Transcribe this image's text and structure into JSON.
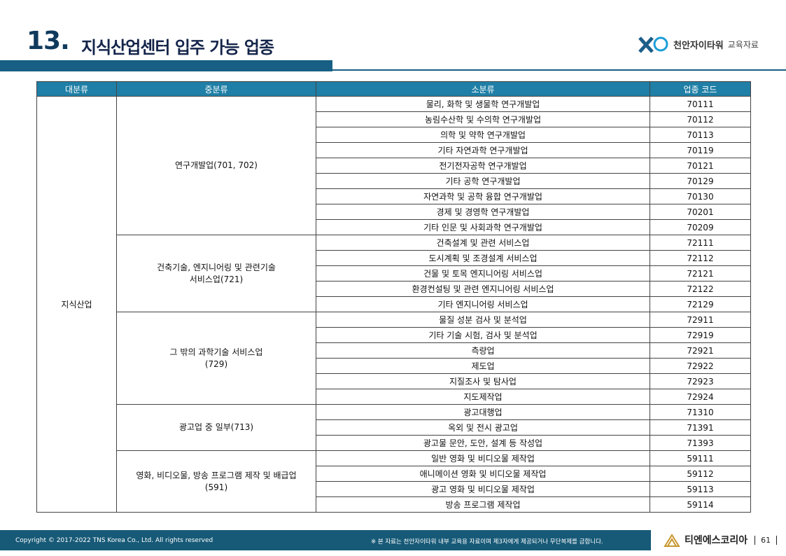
{
  "header": {
    "number": "13.",
    "title": "지식산업센터 입주 가능 업종",
    "logo_text": "천안자이타워",
    "logo_sub": "교육자료"
  },
  "table": {
    "headers": [
      "대분류",
      "중분류",
      "소분류",
      "업종 코드"
    ],
    "major": "지식산업",
    "groups": [
      {
        "label": [
          "연구개발업(701, 702)"
        ],
        "rows": [
          [
            "물리, 화학 및 생물학 연구개발업",
            "70111"
          ],
          [
            "농림수산학 및 수의학 연구개발업",
            "70112"
          ],
          [
            "의학 및 약학 연구개발업",
            "70113"
          ],
          [
            "기타 자연과학 연구개발업",
            "70119"
          ],
          [
            "전기전자공학 연구개발업",
            "70121"
          ],
          [
            "기타 공학 연구개발업",
            "70129"
          ],
          [
            "자연과학 및 공학 융합 연구개발업",
            "70130"
          ],
          [
            "경제 및 경영학 연구개발업",
            "70201"
          ],
          [
            "기타 인문 및 사회과학 연구개발업",
            "70209"
          ]
        ]
      },
      {
        "label": [
          "건축기술, 엔지니어링 및 관련기술",
          "서비스업(721)"
        ],
        "rows": [
          [
            "건축설계 및 관련 서비스업",
            "72111"
          ],
          [
            "도시계획 및 조경설계 서비스업",
            "72112"
          ],
          [
            "건물 및 토목 엔지니어링 서비스업",
            "72121"
          ],
          [
            "환경컨설팅 및 관련 엔지니어링 서비스업",
            "72122"
          ],
          [
            "기타 엔지니어링 서비스업",
            "72129"
          ]
        ]
      },
      {
        "label": [
          "그 밖의 과학기술 서비스업",
          "(729)"
        ],
        "rows": [
          [
            "물질 성분 검사 및 분석업",
            "72911"
          ],
          [
            "기타 기술 시험, 검사 및 분석업",
            "72919"
          ],
          [
            "측량업",
            "72921"
          ],
          [
            "제도업",
            "72922"
          ],
          [
            "지질조사 및 탐사업",
            "72923"
          ],
          [
            "지도제작업",
            "72924"
          ]
        ]
      },
      {
        "label": [
          "광고업 중 일부(713)"
        ],
        "rows": [
          [
            "광고대행업",
            "71310"
          ],
          [
            "옥외 및 전시 광고업",
            "71391"
          ],
          [
            "광고물 문안, 도안, 설계 등 작성업",
            "71393"
          ]
        ]
      },
      {
        "label": [
          "영화, 비디오물, 방송 프로그램 제작 및 배급업",
          "(591)"
        ],
        "rows": [
          [
            "일반 영화 및 비디오물 제작업",
            "59111"
          ],
          [
            "애니메이션 영화 및 비디오물 제작업",
            "59112"
          ],
          [
            "광고 영화 및 비디오물 제작업",
            "59113"
          ],
          [
            "방송 프로그램 제작업",
            "59114"
          ]
        ]
      }
    ]
  },
  "footer": {
    "copyright": "Copyright © 2017-2022 TNS Korea Co., Ltd.  All rights reserved",
    "notice": "※ 본 자료는 천안자이타워 내부 교육용 자료이며 제3자에게 제공되거나 무단복제를 금합니다.",
    "company": "티엔에스코리아",
    "page": "61"
  }
}
